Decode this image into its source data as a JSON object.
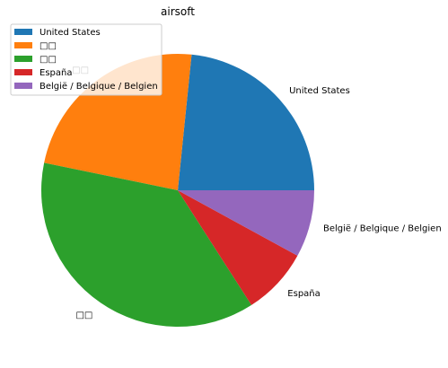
{
  "chart_data": {
    "type": "pie",
    "title": "airsoft",
    "labels": [
      "United States",
      "□□",
      "□□",
      "España",
      "België / Belgique / Belgien"
    ],
    "values": [
      23.5,
      23.5,
      37.5,
      8.0,
      8.0
    ],
    "colors": [
      "#1f77b4",
      "#ff7f0e",
      "#2ca02c",
      "#d62728",
      "#9467bd"
    ],
    "start_angle_deg": 0,
    "direction": "counterclockwise",
    "legend_placement": "upper-left"
  }
}
